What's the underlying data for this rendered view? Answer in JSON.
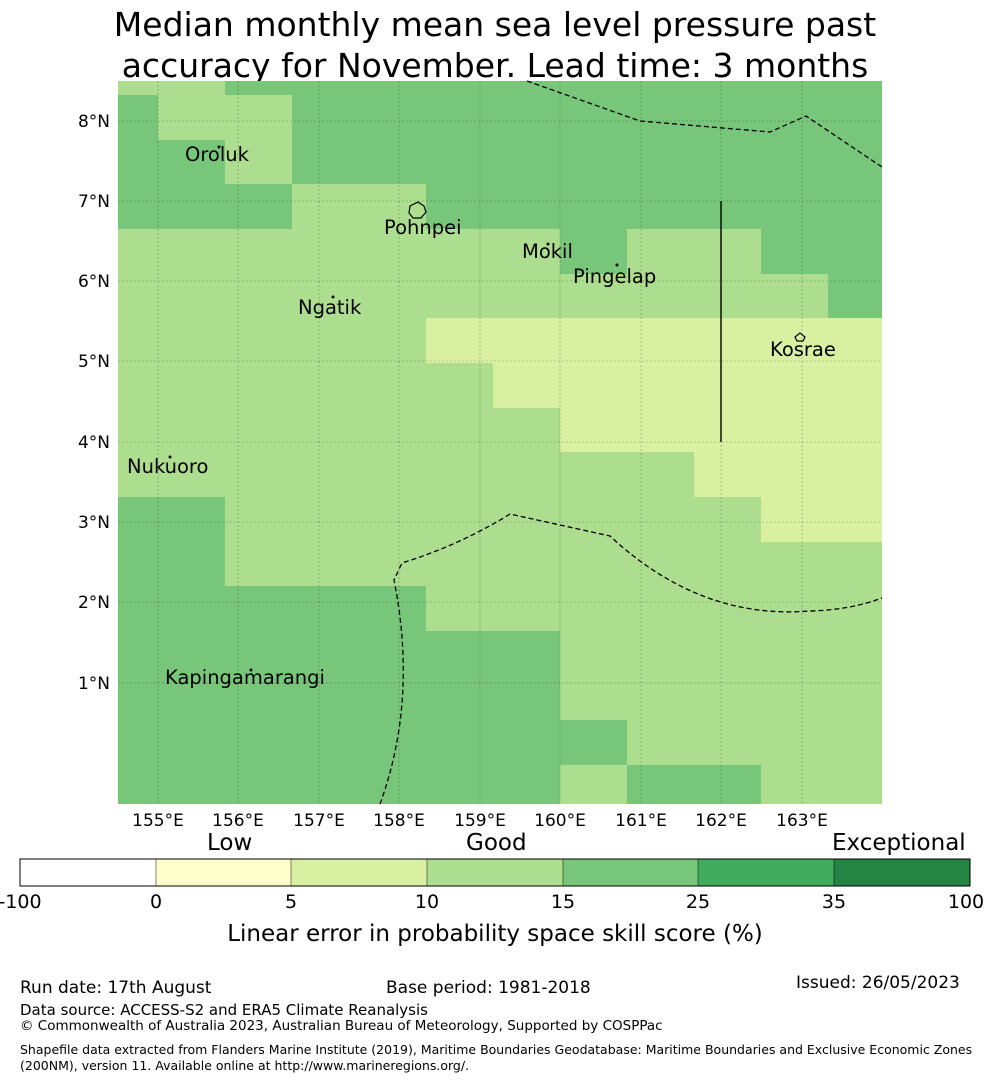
{
  "title": {
    "line1": "Median monthly mean sea level pressure past",
    "line2": "accuracy for November. Lead time: 3 months"
  },
  "map": {
    "lat_labels": [
      "8°N",
      "7°N",
      "6°N",
      "5°N",
      "4°N",
      "3°N",
      "2°N",
      "1°N"
    ],
    "lon_labels": [
      "155°E",
      "156°E",
      "157°E",
      "158°E",
      "159°E",
      "160°E",
      "161°E",
      "162°E",
      "163°E"
    ],
    "places": [
      {
        "name": "Oroluk"
      },
      {
        "name": "Pohnpei"
      },
      {
        "name": "Mokil"
      },
      {
        "name": "Pingelap"
      },
      {
        "name": "Ngatik"
      },
      {
        "name": "Kosrae"
      },
      {
        "name": "Nukuoro"
      },
      {
        "name": "Kapingamarangi"
      }
    ],
    "colors": {
      "low": "#ffffcc",
      "c5_10": "#d9f0a3",
      "c10_15": "#addd8e",
      "c15_25": "#78c679",
      "c25_35": "#41ab5d",
      "c35_100": "#238443"
    }
  },
  "colorbar": {
    "categories": [
      "Low",
      "Good",
      "Exceptional"
    ],
    "ticks": [
      "-100",
      "0",
      "5",
      "10",
      "15",
      "25",
      "35",
      "100"
    ],
    "colors": [
      "#ffffff",
      "#ffffcc",
      "#d9f0a3",
      "#addd8e",
      "#78c679",
      "#41ab5d",
      "#238443"
    ],
    "label": "Linear error in probability space skill score (%)"
  },
  "footer": {
    "run_date": "Run date: 17th August",
    "base_period": "Base period: 1981-2018",
    "issued": "Issued: 26/05/2023",
    "data_source": "Data source: ACCESS-S2 and ERA5 Climate Reanalysis",
    "copyright": "© Commonwealth of Australia 2023, Australian Bureau of Meteorology, Supported by COSPPac",
    "shapefile_line1": "Shapefile data extracted from Flanders Marine Institute (2019), Maritime Boundaries Geodatabase: Maritime Boundaries and Exclusive Economic Zones",
    "shapefile_line2": "(200NM), version 11. Available online at http://www.marineregions.org/."
  }
}
